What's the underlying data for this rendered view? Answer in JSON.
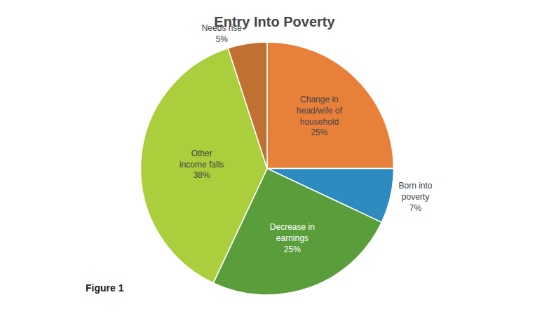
{
  "chart_data": {
    "type": "pie",
    "title": "Entry Into Poverty",
    "categories": [
      "Change in\nhead/wife of\nhousehold",
      "Born into\npoverty",
      "Decrease in\nearnings",
      "Other\nincome falls",
      "Needs rise"
    ],
    "values": [
      25,
      7,
      25,
      38,
      5
    ],
    "value_labels": [
      "25%",
      "7%",
      "25%",
      "38%",
      "5%"
    ],
    "colors": [
      "#E8803A",
      "#2E8BBF",
      "#5A9E3C",
      "#ABCE3C",
      "#C07030"
    ],
    "data_labels": true,
    "annotations": [
      "Figure 1"
    ]
  }
}
